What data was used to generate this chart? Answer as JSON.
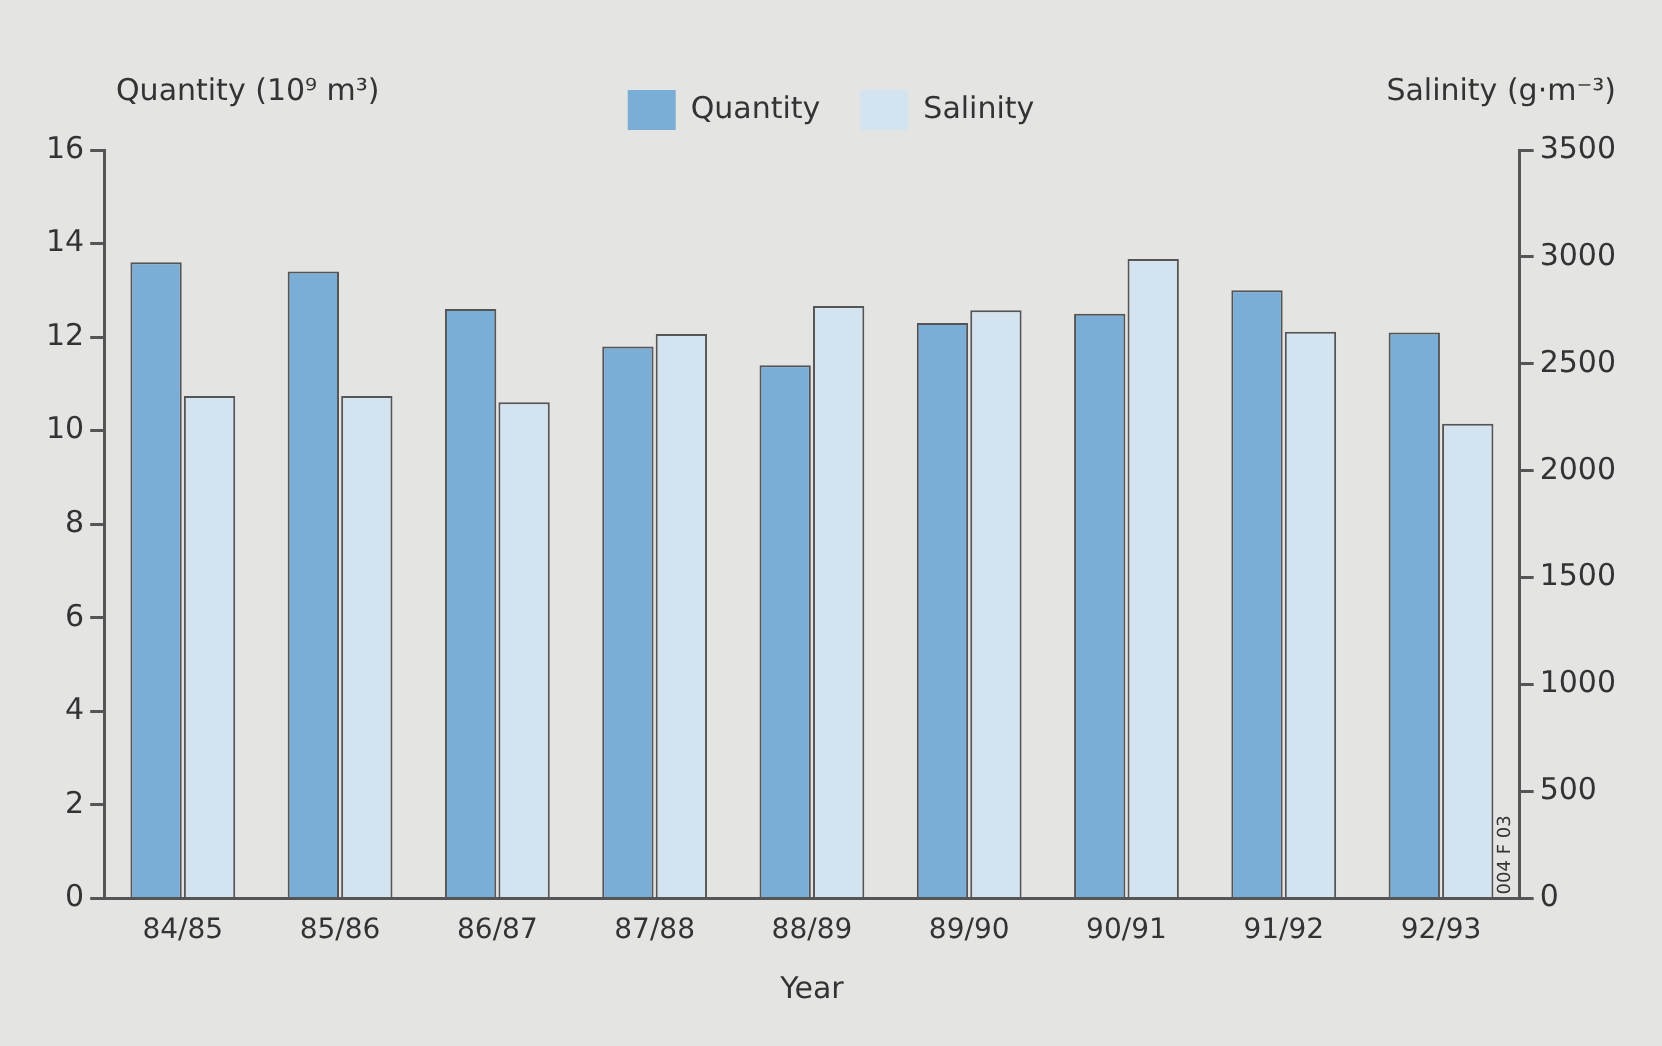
{
  "chart_data": {
    "type": "bar",
    "xlabel": "Year",
    "ylabel": "Quantity (10⁹ m³)",
    "y2label": "Salinity (g·m⁻³)",
    "categories": [
      "84/85",
      "85/86",
      "86/87",
      "87/88",
      "88/89",
      "89/90",
      "90/91",
      "91/92",
      "92/93"
    ],
    "series": [
      {
        "name": "Quantity",
        "color": "#7aaed6",
        "values": [
          13.6,
          13.4,
          12.6,
          11.8,
          11.4,
          12.3,
          12.5,
          13.0,
          12.1
        ]
      },
      {
        "name": "Salinity",
        "color": "#d3e3f0",
        "axis": "y2",
        "values": [
          2350,
          2350,
          2320,
          2640,
          2770,
          2750,
          2990,
          2650,
          2220
        ]
      }
    ],
    "ylim": [
      0,
      16
    ],
    "yticks": [
      0,
      2,
      4,
      6,
      8,
      10,
      12,
      14,
      16
    ],
    "y2lim": [
      0,
      3500
    ],
    "y2ticks": [
      0,
      500,
      1000,
      1500,
      2000,
      2500,
      3000,
      3500
    ],
    "grid": false,
    "legend": "top",
    "annotations": [
      "004 F 03"
    ]
  }
}
